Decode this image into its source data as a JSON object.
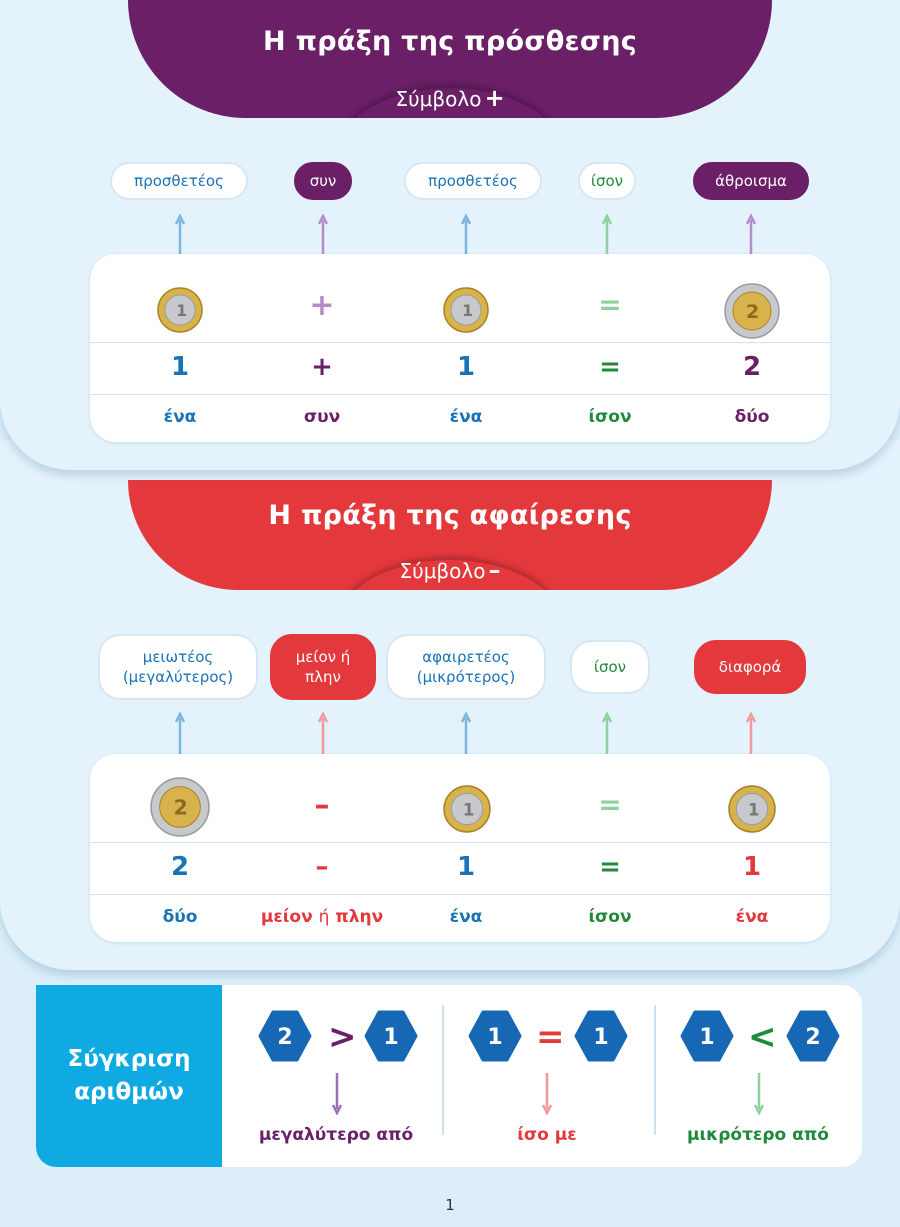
{
  "addition": {
    "title": "Η πράξη της πρόσθεσης",
    "symbol_label": "Σύμβολο",
    "symbol": "+",
    "terms": [
      "προσθετέος",
      "συν",
      "προσθετέος",
      "ίσον",
      "άθροισμα"
    ],
    "numbers": [
      "1",
      "+",
      "1",
      "=",
      "2"
    ],
    "symbols": [
      "+",
      "="
    ],
    "words": [
      "ένα",
      "συν",
      "ένα",
      "ίσον",
      "δύο"
    ]
  },
  "subtraction": {
    "title": "Η πράξη της αφαίρεσης",
    "symbol_label": "Σύμβολο",
    "symbol": "–",
    "terms": [
      {
        "line1": "μειωτέος",
        "line2": "(μεγαλύτερος)"
      },
      {
        "line1": "μείον ή",
        "line2": "πλην"
      },
      {
        "line1": "αφαιρετέος",
        "line2": "(μικρότερος)"
      },
      {
        "line1": "ίσον",
        "line2": ""
      },
      {
        "line1": "διαφορά",
        "line2": ""
      }
    ],
    "numbers": [
      "2",
      "–",
      "1",
      "=",
      "1"
    ],
    "symbols": [
      "–",
      "="
    ],
    "words": [
      "δύο",
      "μείον",
      "ή",
      "πλην",
      "ένα",
      "ίσον",
      "ένα"
    ]
  },
  "comparison": {
    "label_line1": "Σύγκριση",
    "label_line2": "αριθμών",
    "groups": [
      {
        "left": "2",
        "op": ">",
        "right": "1",
        "text": "μεγαλύτερο από"
      },
      {
        "left": "1",
        "op": "=",
        "right": "1",
        "text": "ίσο με"
      },
      {
        "left": "1",
        "op": "<",
        "right": "2",
        "text": "μικρότερο από"
      }
    ]
  },
  "coin_values": {
    "one": "1",
    "two": "2"
  },
  "page_number": "1",
  "colors": {
    "purple": "#6a1f66",
    "red": "#e3383c",
    "blue": "#1a73b7",
    "green": "#1f8a3c",
    "cyan": "#10aae2",
    "background": "#dbeefa"
  },
  "icons": [
    "euro-coin-1-icon",
    "euro-coin-2-icon",
    "up-arrow-icon",
    "down-arrow-icon"
  ]
}
